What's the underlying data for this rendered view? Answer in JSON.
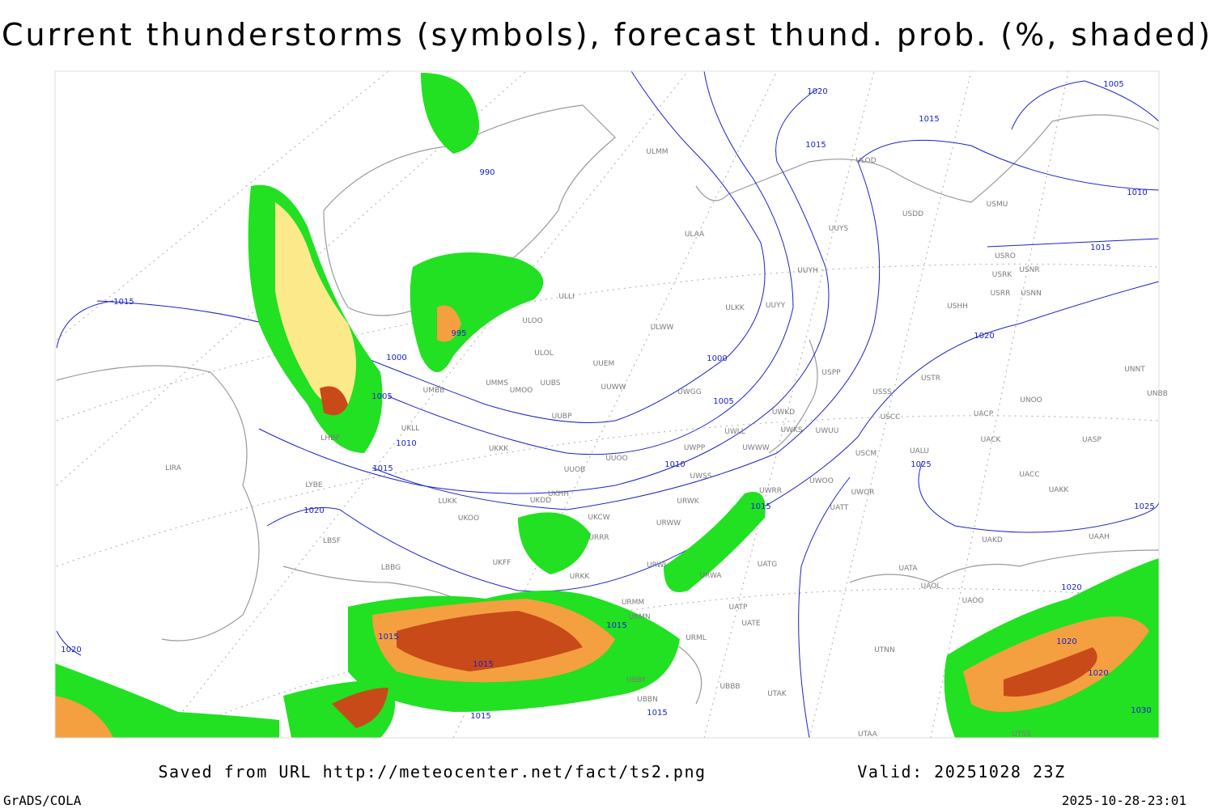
{
  "title": "Current thunderstorms (symbols), forecast thund. prob. (%, shaded)",
  "isobar_labels": [
    "1020",
    "1005",
    "1015",
    "1015",
    "990",
    "1010",
    "1015",
    "995",
    "1015",
    "1000",
    "1000",
    "1020",
    "1005",
    "1005",
    "1010",
    "1015",
    "1010",
    "1025",
    "1020",
    "1015",
    "1025",
    "1015",
    "1015",
    "1015",
    "1020",
    "1020",
    "1020",
    "1020",
    "1015",
    "1015",
    "1030"
  ],
  "stations": [
    "ULMM",
    "ULOD",
    "USMU",
    "USDD",
    "UUYS",
    "ULAA",
    "USRO",
    "USRK",
    "USNR",
    "UUYH",
    "USRR",
    "USNN",
    "ULLI",
    "ULKK",
    "UUYY",
    "USHH",
    "ULOO",
    "ULWW",
    "ULOL",
    "UUEM",
    "USPP",
    "USTR",
    "UMMS",
    "UUBS",
    "UMOO",
    "UUWW",
    "UWGG",
    "UMBB",
    "USSS",
    "UNOO",
    "UNBB",
    "UNNT",
    "UWKD",
    "UUBP",
    "USCC",
    "UACP",
    "UKLL",
    "UWKS",
    "UWUU",
    "UWLL",
    "UACK",
    "UASP",
    "UKKK",
    "UWPP",
    "UWWW",
    "USCM",
    "UALU",
    "UUOO",
    "LHBP",
    "LIRA",
    "UUOB",
    "UWSS",
    "UACC",
    "UWOO",
    "LYBE",
    "UKHH",
    "UAKK",
    "UWOR",
    "UWRR",
    "LUKK",
    "UKDD",
    "URWK",
    "UATT",
    "UKOO",
    "UKCW",
    "LBSF",
    "URRR",
    "URWW",
    "UAKD",
    "UAAH",
    "LBBG",
    "UKFF",
    "URWI",
    "UATG",
    "UATA",
    "URKK",
    "URWA",
    "UAOL",
    "URMM",
    "UAOO",
    "UATP",
    "URMN",
    "UATE",
    "URML",
    "UTNN",
    "UBBB",
    "UBBY",
    "UTAK",
    "UBBN",
    "UTAA",
    "UTSS"
  ],
  "footer": {
    "saved": "Saved from URL http://meteocenter.net/fact/ts2.png",
    "valid": "Valid: 20251028 23Z",
    "software": "GrADS/COLA",
    "timestamp": "2025-10-28-23:01"
  }
}
